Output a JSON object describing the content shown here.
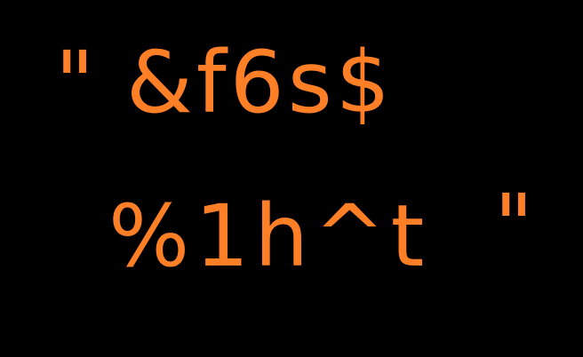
{
  "text": {
    "line1": {
      "quote_open": "\"",
      "chars": "&f6s$"
    },
    "line2": {
      "chars": "%1h^t",
      "quote_close": "\""
    }
  },
  "colors": {
    "background": "#000000",
    "text": "#ff7f27"
  }
}
